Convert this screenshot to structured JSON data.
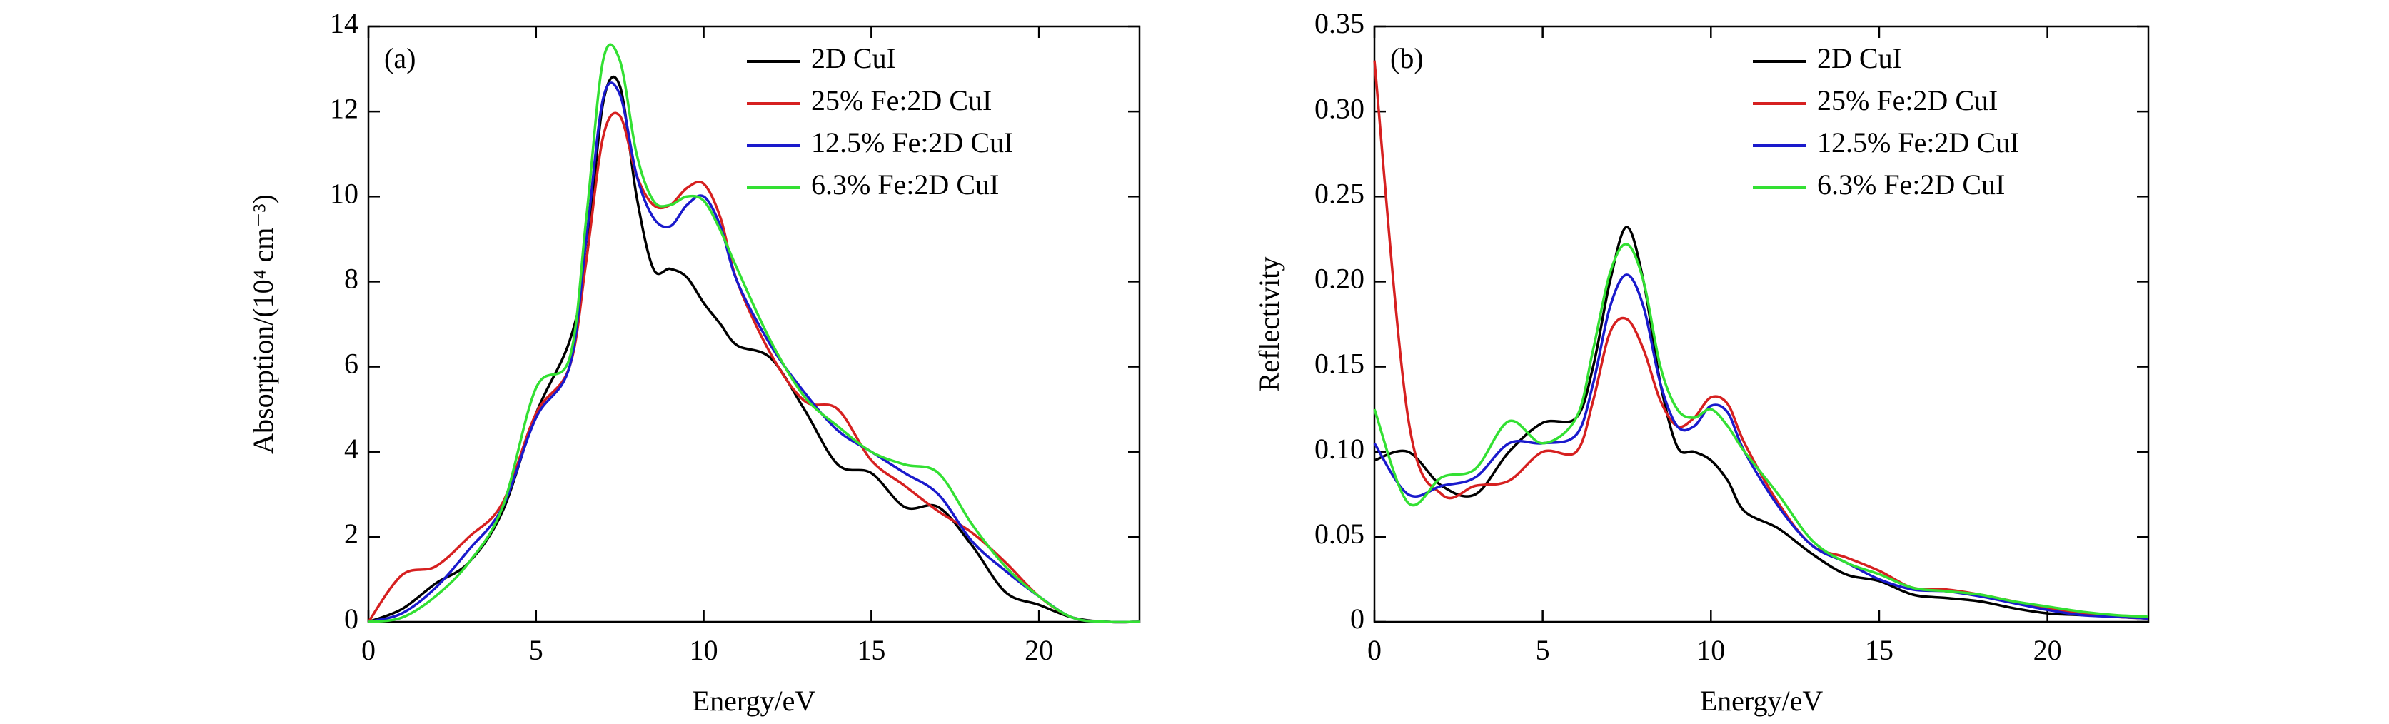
{
  "chart_data": [
    {
      "type": "line",
      "panel_label": "(a)",
      "x_label": "Energy/eV",
      "y_label": "Absorption/(10⁴ cm⁻³)",
      "xlim": [
        0,
        23
      ],
      "ylim": [
        0,
        14
      ],
      "xticks": [
        0,
        5,
        10,
        15,
        20
      ],
      "yticks": [
        0,
        2,
        4,
        6,
        8,
        10,
        12,
        14
      ],
      "x": [
        0,
        1,
        2,
        3,
        4,
        5,
        6,
        6.5,
        7,
        7.5,
        8,
        8.5,
        9,
        9.5,
        10,
        10.5,
        11,
        12,
        13,
        14,
        15,
        16,
        17,
        18,
        19,
        20,
        21,
        22,
        23
      ],
      "series": [
        {
          "name": "2D CuI",
          "color": "#000000",
          "values": [
            0,
            0.3,
            0.9,
            1.4,
            2.6,
            4.9,
            6.6,
            8.5,
            12.2,
            12.6,
            10,
            8.3,
            8.3,
            8.1,
            7.5,
            7.0,
            6.5,
            6.2,
            5.0,
            3.7,
            3.5,
            2.7,
            2.7,
            1.8,
            0.7,
            0.4,
            0.1,
            0,
            0
          ]
        },
        {
          "name": "25% Fe:2D CuI",
          "color": "#d62020",
          "values": [
            0,
            1.1,
            1.3,
            2.0,
            2.8,
            4.9,
            6.0,
            8.5,
            11.4,
            11.9,
            10.5,
            9.8,
            9.8,
            10.2,
            10.3,
            9.5,
            8.0,
            6.3,
            5.2,
            5.0,
            3.8,
            3.2,
            2.6,
            2.1,
            1.4,
            0.6,
            0.1,
            0,
            0
          ]
        },
        {
          "name": "12.5% Fe:2D CuI",
          "color": "#1a1acc",
          "values": [
            0,
            0.2,
            0.8,
            1.7,
            2.7,
            4.8,
            6.0,
            9,
            12.3,
            12.4,
            10.5,
            9.5,
            9.3,
            9.8,
            10.0,
            9.3,
            8.0,
            6.5,
            5.4,
            4.5,
            4.0,
            3.5,
            3.0,
            1.9,
            1.2,
            0.6,
            0.1,
            0,
            0
          ]
        },
        {
          "name": "6.3% Fe:2D CuI",
          "color": "#33e033",
          "values": [
            0,
            0.1,
            0.6,
            1.4,
            2.7,
            5.5,
            6.2,
            9.5,
            13.2,
            13.2,
            11,
            9.9,
            9.8,
            10.0,
            9.9,
            9.2,
            8.3,
            6.6,
            5.3,
            4.6,
            4.0,
            3.7,
            3.5,
            2.3,
            1.3,
            0.6,
            0.1,
            0,
            0
          ]
        }
      ]
    },
    {
      "type": "line",
      "panel_label": "(b)",
      "x_label": "Energy/eV",
      "y_label": "Reflectivity",
      "xlim": [
        0,
        23
      ],
      "ylim": [
        0,
        0.35
      ],
      "xticks": [
        0,
        5,
        10,
        15,
        20
      ],
      "yticks": [
        0,
        0.05,
        {
          "value": 0.1,
          "label": "0.10"
        },
        0.15,
        {
          "value": 0.2,
          "label": "0.20"
        },
        0.25,
        {
          "value": 0.3,
          "label": "0.30"
        },
        0.35
      ],
      "x": [
        0,
        1,
        2,
        3,
        4,
        5,
        6,
        6.5,
        7,
        7.5,
        8,
        8.5,
        9,
        9.5,
        10,
        10.5,
        11,
        12,
        13,
        14,
        15,
        16,
        17,
        18,
        19,
        20,
        21,
        22,
        23
      ],
      "series": [
        {
          "name": "2D CuI",
          "color": "#000000",
          "values": [
            0.095,
            0.1,
            0.08,
            0.075,
            0.1,
            0.117,
            0.12,
            0.15,
            0.2,
            0.232,
            0.2,
            0.14,
            0.103,
            0.1,
            0.095,
            0.083,
            0.065,
            0.055,
            0.04,
            0.028,
            0.024,
            0.016,
            0.014,
            0.012,
            0.008,
            0.005,
            0.004,
            0.003,
            0.002
          ]
        },
        {
          "name": "25% Fe:2D CuI",
          "color": "#d62020",
          "values": [
            0.33,
            0.12,
            0.075,
            0.08,
            0.083,
            0.1,
            0.1,
            0.13,
            0.17,
            0.178,
            0.16,
            0.13,
            0.115,
            0.12,
            0.132,
            0.128,
            0.105,
            0.07,
            0.045,
            0.038,
            0.03,
            0.02,
            0.019,
            0.016,
            0.012,
            0.008,
            0.005,
            0.003,
            0.002
          ]
        },
        {
          "name": "12.5% Fe:2D CuI",
          "color": "#1a1acc",
          "values": [
            0.105,
            0.075,
            0.08,
            0.085,
            0.105,
            0.105,
            0.11,
            0.14,
            0.185,
            0.204,
            0.185,
            0.14,
            0.115,
            0.115,
            0.127,
            0.123,
            0.1,
            0.068,
            0.045,
            0.035,
            0.025,
            0.019,
            0.018,
            0.015,
            0.011,
            0.007,
            0.004,
            0.003,
            0.002
          ]
        },
        {
          "name": "6.3% Fe:2D CuI",
          "color": "#33e033",
          "values": [
            0.125,
            0.07,
            0.085,
            0.09,
            0.118,
            0.105,
            0.12,
            0.16,
            0.205,
            0.222,
            0.2,
            0.15,
            0.125,
            0.12,
            0.125,
            0.115,
            0.1,
            0.075,
            0.048,
            0.035,
            0.028,
            0.02,
            0.018,
            0.016,
            0.012,
            0.009,
            0.006,
            0.004,
            0.003
          ]
        }
      ]
    }
  ]
}
